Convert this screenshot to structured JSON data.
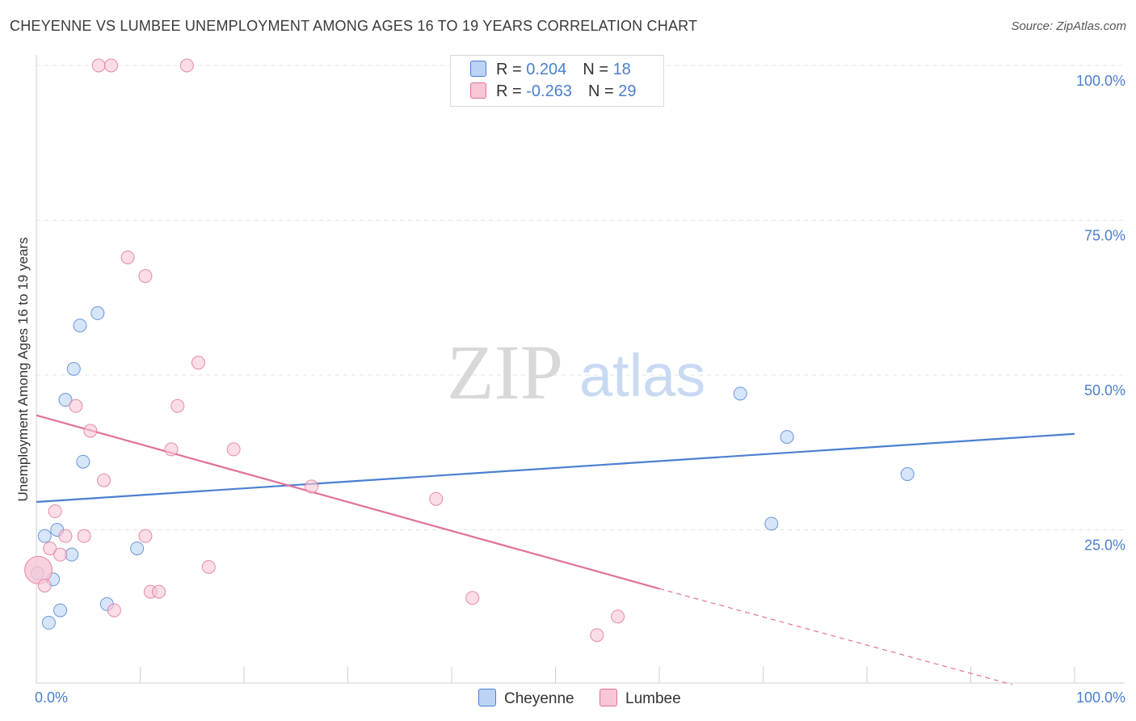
{
  "title": "CHEYENNE VS LUMBEE UNEMPLOYMENT AMONG AGES 16 TO 19 YEARS CORRELATION CHART",
  "source": "Source: ZipAtlas.com",
  "watermark": {
    "zip": "ZIP",
    "atlas": "atlas"
  },
  "legend": {
    "rows": [
      {
        "r_label": "R = ",
        "r_value": "0.204",
        "n_label": "N = ",
        "n_value": "18"
      },
      {
        "r_label": "R = ",
        "r_value": "-0.263",
        "n_label": "N = ",
        "n_value": "29"
      }
    ],
    "bottom": [
      "Cheyenne",
      "Lumbee"
    ]
  },
  "chart_data": {
    "type": "scatter",
    "title": "CHEYENNE VS LUMBEE UNEMPLOYMENT AMONG AGES 16 TO 19 YEARS CORRELATION CHART",
    "xlabel": "",
    "ylabel": "Unemployment Among Ages 16 to 19 years",
    "xlim": [
      0,
      100
    ],
    "ylim": [
      0,
      100
    ],
    "x_tick_labels": [
      "0.0%",
      "100.0%"
    ],
    "y_tick_labels": [
      "25.0%",
      "50.0%",
      "75.0%",
      "100.0%"
    ],
    "y_ticks": [
      25,
      50,
      75,
      100
    ],
    "grid": true,
    "legend_position": "top-center",
    "colors": {
      "cheyenne": "#4a7fd1",
      "cheyenne_fill": "#bcd3f5",
      "lumbee": "#e0709a",
      "lumbee_fill": "#f8c6d5"
    },
    "series": [
      {
        "name": "Cheyenne",
        "color": "#4a7fd1",
        "points": [
          [
            0.8,
            24
          ],
          [
            1.2,
            10
          ],
          [
            1.6,
            17
          ],
          [
            2.0,
            25
          ],
          [
            2.3,
            12
          ],
          [
            2.8,
            46
          ],
          [
            3.4,
            21
          ],
          [
            3.6,
            51
          ],
          [
            4.2,
            58
          ],
          [
            4.5,
            36
          ],
          [
            5.9,
            60
          ],
          [
            6.8,
            13
          ],
          [
            9.7,
            22
          ],
          [
            67.8,
            47
          ],
          [
            72.3,
            40
          ],
          [
            83.9,
            34
          ],
          [
            70.8,
            26
          ],
          [
            0.1,
            18
          ]
        ],
        "trend": {
          "x": [
            0,
            100
          ],
          "y": [
            29.5,
            40.5
          ]
        }
      },
      {
        "name": "Lumbee",
        "color": "#e0709a",
        "points": [
          [
            0.2,
            18.5
          ],
          [
            0.8,
            16
          ],
          [
            1.3,
            22
          ],
          [
            1.8,
            28
          ],
          [
            2.3,
            21
          ],
          [
            2.8,
            24
          ],
          [
            3.8,
            45
          ],
          [
            4.6,
            24
          ],
          [
            5.2,
            41
          ],
          [
            6.0,
            100
          ],
          [
            6.5,
            33
          ],
          [
            7.2,
            100
          ],
          [
            7.5,
            12
          ],
          [
            8.8,
            69
          ],
          [
            10.5,
            66
          ],
          [
            10.5,
            24
          ],
          [
            11.0,
            15
          ],
          [
            11.8,
            15
          ],
          [
            13.0,
            38
          ],
          [
            13.6,
            45
          ],
          [
            14.5,
            100
          ],
          [
            15.6,
            52
          ],
          [
            16.6,
            19
          ],
          [
            19.0,
            38
          ],
          [
            26.5,
            32
          ],
          [
            38.5,
            30
          ],
          [
            42.0,
            14
          ],
          [
            54.0,
            8
          ],
          [
            56.0,
            11
          ]
        ],
        "trend": {
          "x": [
            0,
            60
          ],
          "y": [
            43.5,
            15.5
          ]
        },
        "trend_dashed": {
          "x": [
            60,
            94
          ],
          "y": [
            15.5,
            0
          ]
        }
      }
    ]
  }
}
